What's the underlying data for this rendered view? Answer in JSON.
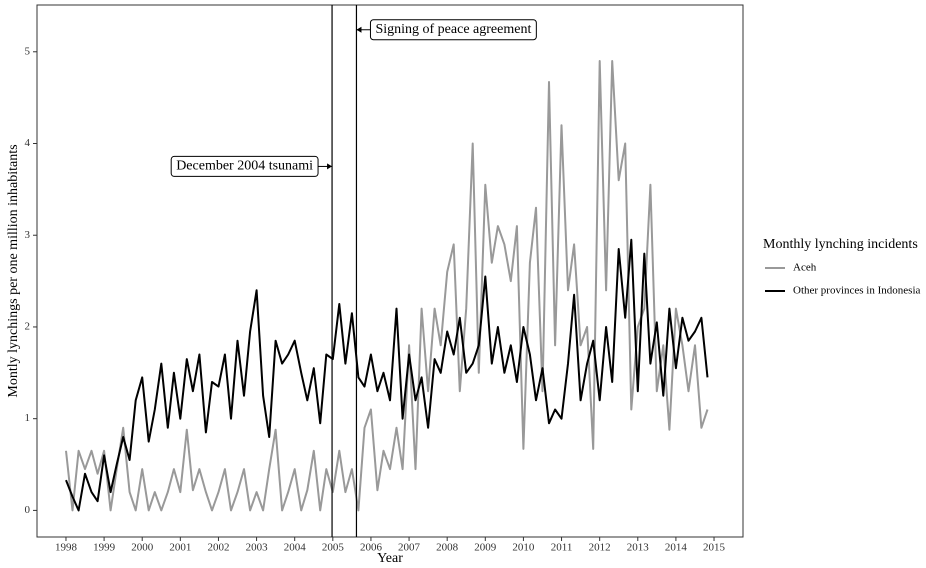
{
  "chart_data": {
    "type": "line",
    "x_label": "Year",
    "y_label": "Montly lynchings per one million inhabitants",
    "legend_title": "Monthly lynching incidents",
    "legend_position": "right",
    "x": [
      1998,
      1998.17,
      1998.33,
      1998.5,
      1998.67,
      1998.83,
      1999,
      1999.17,
      1999.33,
      1999.5,
      1999.67,
      1999.83,
      2000,
      2000.17,
      2000.33,
      2000.5,
      2000.67,
      2000.83,
      2001,
      2001.17,
      2001.33,
      2001.5,
      2001.67,
      2001.83,
      2002,
      2002.17,
      2002.33,
      2002.5,
      2002.67,
      2002.83,
      2003,
      2003.17,
      2003.33,
      2003.5,
      2003.67,
      2003.83,
      2004,
      2004.17,
      2004.33,
      2004.5,
      2004.67,
      2004.83,
      2005,
      2005.17,
      2005.33,
      2005.5,
      2005.67,
      2005.83,
      2006,
      2006.17,
      2006.33,
      2006.5,
      2006.67,
      2006.83,
      2007,
      2007.17,
      2007.33,
      2007.5,
      2007.67,
      2007.83,
      2008,
      2008.17,
      2008.33,
      2008.5,
      2008.67,
      2008.83,
      2009,
      2009.17,
      2009.33,
      2009.5,
      2009.67,
      2009.83,
      2010,
      2010.17,
      2010.33,
      2010.5,
      2010.67,
      2010.83,
      2011,
      2011.17,
      2011.33,
      2011.5,
      2011.67,
      2011.83,
      2012,
      2012.17,
      2012.33,
      2012.5,
      2012.67,
      2012.83,
      2013,
      2013.17,
      2013.33,
      2013.5,
      2013.67,
      2013.83,
      2014,
      2014.17,
      2014.33,
      2014.5,
      2014.67,
      2014.83
    ],
    "series": [
      {
        "name": "Aceh",
        "color": "#999999",
        "values": [
          0.65,
          0,
          0.65,
          0.45,
          0.65,
          0.4,
          0.65,
          0,
          0.45,
          0.9,
          0.2,
          0,
          0.45,
          0,
          0.2,
          0,
          0.2,
          0.45,
          0.2,
          0.88,
          0.22,
          0.45,
          0.2,
          0,
          0.2,
          0.45,
          0,
          0.2,
          0.45,
          0,
          0.2,
          0,
          0.45,
          0.88,
          0,
          0.2,
          0.45,
          0,
          0.22,
          0.65,
          0,
          0.45,
          0.2,
          0.65,
          0.2,
          0.45,
          0,
          0.9,
          1.1,
          0.22,
          0.65,
          0.45,
          0.9,
          0.45,
          1.8,
          0.45,
          2.2,
          1.3,
          2.2,
          1.8,
          2.6,
          2.9,
          1.3,
          2.2,
          4.0,
          1.5,
          3.55,
          2.7,
          3.1,
          2.9,
          2.5,
          3.1,
          0.67,
          2.7,
          3.3,
          1.3,
          4.67,
          1.8,
          4.2,
          2.4,
          2.9,
          1.8,
          2.0,
          0.67,
          4.9,
          2.4,
          4.9,
          3.6,
          4.0,
          1.1,
          2.0,
          2.2,
          3.55,
          1.3,
          1.8,
          0.88,
          2.2,
          1.8,
          1.3,
          1.8,
          0.9,
          1.1
        ]
      },
      {
        "name": "Other provinces in Indonesia",
        "color": "#000000",
        "values": [
          0.33,
          0.15,
          0,
          0.4,
          0.2,
          0.1,
          0.6,
          0.2,
          0.5,
          0.8,
          0.55,
          1.2,
          1.45,
          0.75,
          1.1,
          1.6,
          0.9,
          1.5,
          1.0,
          1.65,
          1.3,
          1.7,
          0.85,
          1.4,
          1.35,
          1.7,
          1.0,
          1.85,
          1.25,
          1.95,
          2.4,
          1.25,
          0.8,
          1.85,
          1.6,
          1.7,
          1.85,
          1.5,
          1.2,
          1.55,
          0.95,
          1.7,
          1.65,
          2.25,
          1.6,
          2.15,
          1.45,
          1.35,
          1.7,
          1.3,
          1.5,
          1.2,
          2.2,
          1.0,
          1.7,
          1.2,
          1.45,
          0.9,
          1.65,
          1.5,
          1.95,
          1.7,
          2.1,
          1.5,
          1.6,
          1.8,
          2.55,
          1.6,
          2.0,
          1.5,
          1.8,
          1.4,
          2.0,
          1.7,
          1.2,
          1.55,
          0.95,
          1.1,
          1.0,
          1.6,
          2.35,
          1.2,
          1.6,
          1.85,
          1.2,
          2.0,
          1.4,
          2.85,
          2.1,
          2.95,
          1.3,
          2.8,
          1.6,
          2.05,
          1.25,
          2.2,
          1.55,
          2.1,
          1.85,
          1.95,
          2.1,
          1.45
        ]
      }
    ],
    "vlines": [
      2004.98,
      2005.62
    ],
    "annotations": [
      {
        "text": "December 2004 tsunami",
        "x": 2004.98,
        "y": 3.75,
        "side": "left"
      },
      {
        "text": "Signing of peace agreement",
        "x": 2005.62,
        "y": 5.24,
        "side": "right"
      }
    ],
    "xlim": [
      1997.24,
      2015.76
    ],
    "ylim": [
      -0.29,
      5.51
    ],
    "xticks": [
      1998,
      1999,
      2000,
      2001,
      2002,
      2003,
      2004,
      2005,
      2006,
      2007,
      2008,
      2009,
      2010,
      2011,
      2012,
      2013,
      2014,
      2015
    ],
    "yticks": [
      0,
      1,
      2,
      3,
      4,
      5
    ],
    "grid": false
  }
}
